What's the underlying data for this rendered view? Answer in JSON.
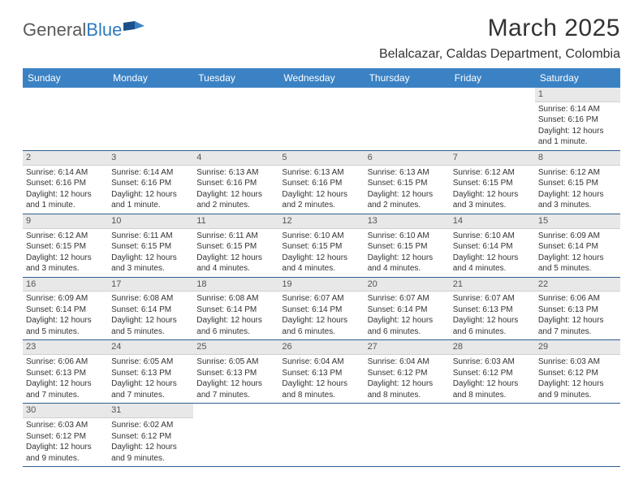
{
  "logo": {
    "text1": "General",
    "text2": "Blue"
  },
  "title": "March 2025",
  "location": "Belalcazar, Caldas Department, Colombia",
  "colors": {
    "header_bg": "#3b82c4",
    "header_text": "#ffffff",
    "daynum_bg": "#e8e8e8",
    "border": "#2d5f8f",
    "text": "#333333",
    "logo_gray": "#5a5a5a",
    "logo_blue": "#2d7bc0"
  },
  "day_names": [
    "Sunday",
    "Monday",
    "Tuesday",
    "Wednesday",
    "Thursday",
    "Friday",
    "Saturday"
  ],
  "weeks": [
    [
      null,
      null,
      null,
      null,
      null,
      null,
      {
        "n": "1",
        "sr": "Sunrise: 6:14 AM",
        "ss": "Sunset: 6:16 PM",
        "d1": "Daylight: 12 hours",
        "d2": "and 1 minute."
      }
    ],
    [
      {
        "n": "2",
        "sr": "Sunrise: 6:14 AM",
        "ss": "Sunset: 6:16 PM",
        "d1": "Daylight: 12 hours",
        "d2": "and 1 minute."
      },
      {
        "n": "3",
        "sr": "Sunrise: 6:14 AM",
        "ss": "Sunset: 6:16 PM",
        "d1": "Daylight: 12 hours",
        "d2": "and 1 minute."
      },
      {
        "n": "4",
        "sr": "Sunrise: 6:13 AM",
        "ss": "Sunset: 6:16 PM",
        "d1": "Daylight: 12 hours",
        "d2": "and 2 minutes."
      },
      {
        "n": "5",
        "sr": "Sunrise: 6:13 AM",
        "ss": "Sunset: 6:16 PM",
        "d1": "Daylight: 12 hours",
        "d2": "and 2 minutes."
      },
      {
        "n": "6",
        "sr": "Sunrise: 6:13 AM",
        "ss": "Sunset: 6:15 PM",
        "d1": "Daylight: 12 hours",
        "d2": "and 2 minutes."
      },
      {
        "n": "7",
        "sr": "Sunrise: 6:12 AM",
        "ss": "Sunset: 6:15 PM",
        "d1": "Daylight: 12 hours",
        "d2": "and 3 minutes."
      },
      {
        "n": "8",
        "sr": "Sunrise: 6:12 AM",
        "ss": "Sunset: 6:15 PM",
        "d1": "Daylight: 12 hours",
        "d2": "and 3 minutes."
      }
    ],
    [
      {
        "n": "9",
        "sr": "Sunrise: 6:12 AM",
        "ss": "Sunset: 6:15 PM",
        "d1": "Daylight: 12 hours",
        "d2": "and 3 minutes."
      },
      {
        "n": "10",
        "sr": "Sunrise: 6:11 AM",
        "ss": "Sunset: 6:15 PM",
        "d1": "Daylight: 12 hours",
        "d2": "and 3 minutes."
      },
      {
        "n": "11",
        "sr": "Sunrise: 6:11 AM",
        "ss": "Sunset: 6:15 PM",
        "d1": "Daylight: 12 hours",
        "d2": "and 4 minutes."
      },
      {
        "n": "12",
        "sr": "Sunrise: 6:10 AM",
        "ss": "Sunset: 6:15 PM",
        "d1": "Daylight: 12 hours",
        "d2": "and 4 minutes."
      },
      {
        "n": "13",
        "sr": "Sunrise: 6:10 AM",
        "ss": "Sunset: 6:15 PM",
        "d1": "Daylight: 12 hours",
        "d2": "and 4 minutes."
      },
      {
        "n": "14",
        "sr": "Sunrise: 6:10 AM",
        "ss": "Sunset: 6:14 PM",
        "d1": "Daylight: 12 hours",
        "d2": "and 4 minutes."
      },
      {
        "n": "15",
        "sr": "Sunrise: 6:09 AM",
        "ss": "Sunset: 6:14 PM",
        "d1": "Daylight: 12 hours",
        "d2": "and 5 minutes."
      }
    ],
    [
      {
        "n": "16",
        "sr": "Sunrise: 6:09 AM",
        "ss": "Sunset: 6:14 PM",
        "d1": "Daylight: 12 hours",
        "d2": "and 5 minutes."
      },
      {
        "n": "17",
        "sr": "Sunrise: 6:08 AM",
        "ss": "Sunset: 6:14 PM",
        "d1": "Daylight: 12 hours",
        "d2": "and 5 minutes."
      },
      {
        "n": "18",
        "sr": "Sunrise: 6:08 AM",
        "ss": "Sunset: 6:14 PM",
        "d1": "Daylight: 12 hours",
        "d2": "and 6 minutes."
      },
      {
        "n": "19",
        "sr": "Sunrise: 6:07 AM",
        "ss": "Sunset: 6:14 PM",
        "d1": "Daylight: 12 hours",
        "d2": "and 6 minutes."
      },
      {
        "n": "20",
        "sr": "Sunrise: 6:07 AM",
        "ss": "Sunset: 6:14 PM",
        "d1": "Daylight: 12 hours",
        "d2": "and 6 minutes."
      },
      {
        "n": "21",
        "sr": "Sunrise: 6:07 AM",
        "ss": "Sunset: 6:13 PM",
        "d1": "Daylight: 12 hours",
        "d2": "and 6 minutes."
      },
      {
        "n": "22",
        "sr": "Sunrise: 6:06 AM",
        "ss": "Sunset: 6:13 PM",
        "d1": "Daylight: 12 hours",
        "d2": "and 7 minutes."
      }
    ],
    [
      {
        "n": "23",
        "sr": "Sunrise: 6:06 AM",
        "ss": "Sunset: 6:13 PM",
        "d1": "Daylight: 12 hours",
        "d2": "and 7 minutes."
      },
      {
        "n": "24",
        "sr": "Sunrise: 6:05 AM",
        "ss": "Sunset: 6:13 PM",
        "d1": "Daylight: 12 hours",
        "d2": "and 7 minutes."
      },
      {
        "n": "25",
        "sr": "Sunrise: 6:05 AM",
        "ss": "Sunset: 6:13 PM",
        "d1": "Daylight: 12 hours",
        "d2": "and 7 minutes."
      },
      {
        "n": "26",
        "sr": "Sunrise: 6:04 AM",
        "ss": "Sunset: 6:13 PM",
        "d1": "Daylight: 12 hours",
        "d2": "and 8 minutes."
      },
      {
        "n": "27",
        "sr": "Sunrise: 6:04 AM",
        "ss": "Sunset: 6:12 PM",
        "d1": "Daylight: 12 hours",
        "d2": "and 8 minutes."
      },
      {
        "n": "28",
        "sr": "Sunrise: 6:03 AM",
        "ss": "Sunset: 6:12 PM",
        "d1": "Daylight: 12 hours",
        "d2": "and 8 minutes."
      },
      {
        "n": "29",
        "sr": "Sunrise: 6:03 AM",
        "ss": "Sunset: 6:12 PM",
        "d1": "Daylight: 12 hours",
        "d2": "and 9 minutes."
      }
    ],
    [
      {
        "n": "30",
        "sr": "Sunrise: 6:03 AM",
        "ss": "Sunset: 6:12 PM",
        "d1": "Daylight: 12 hours",
        "d2": "and 9 minutes."
      },
      {
        "n": "31",
        "sr": "Sunrise: 6:02 AM",
        "ss": "Sunset: 6:12 PM",
        "d1": "Daylight: 12 hours",
        "d2": "and 9 minutes."
      },
      null,
      null,
      null,
      null,
      null
    ]
  ]
}
